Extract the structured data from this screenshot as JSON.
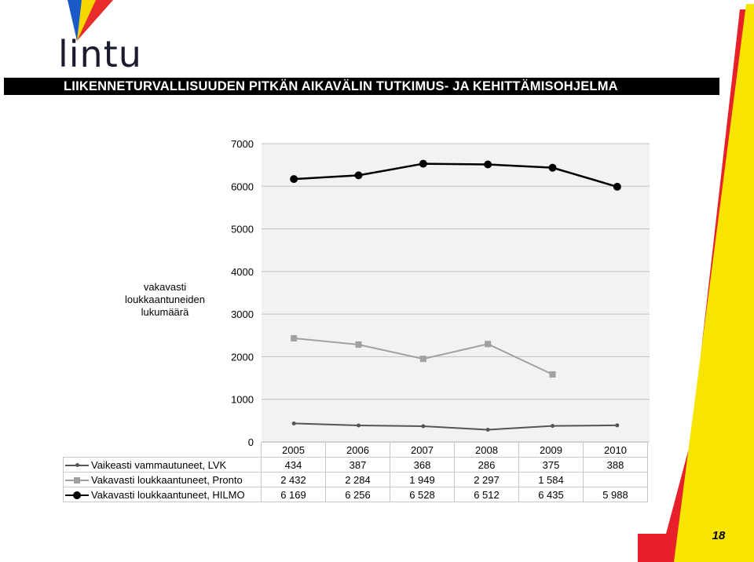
{
  "header": {
    "logo_text": "lintu",
    "banner": "LIIKENNETURVALLISUUDEN PITKÄN AIKAVÄLIN TUTKIMUS- JA KEHITTÄMISOHJELMA"
  },
  "page_number": "18",
  "colors": {
    "stripe_red": "#e8202a",
    "stripe_yellow": "#f7e500",
    "logo_blue": "#1a5ac8",
    "logo_yellow": "#f5d800",
    "logo_red": "#e82b2b"
  },
  "chart_data": {
    "type": "line",
    "ylabel": "vakavasti\nloukkaantuneiden\nlukumäärä",
    "xlabel": "",
    "categories": [
      "2005",
      "2006",
      "2007",
      "2008",
      "2009",
      "2010"
    ],
    "ylim": [
      0,
      7000
    ],
    "yticks": [
      "0",
      "1000",
      "2000",
      "3000",
      "4000",
      "5000",
      "6000",
      "7000"
    ],
    "grid": true,
    "legend": "data-table-below",
    "series": [
      {
        "name": "Vaikeasti vammautuneet, LVK",
        "values": [
          434,
          387,
          368,
          286,
          375,
          388
        ],
        "labels": [
          "434",
          "387",
          "368",
          "286",
          "375",
          "388"
        ],
        "color": "#555555",
        "marker": "dot"
      },
      {
        "name": "Vakavasti loukkaantuneet, Pronto",
        "values": [
          2432,
          2284,
          1949,
          2297,
          1584,
          null
        ],
        "labels": [
          "2 432",
          "2 284",
          "1 949",
          "2 297",
          "1 584",
          ""
        ],
        "color": "#a0a0a0",
        "marker": "square"
      },
      {
        "name": "Vakavasti loukkaantuneet, HILMO",
        "values": [
          6169,
          6256,
          6528,
          6512,
          6435,
          5988
        ],
        "labels": [
          "6 169",
          "6 256",
          "6 528",
          "6 512",
          "6 435",
          "5 988"
        ],
        "color": "#000000",
        "marker": "circle"
      }
    ]
  }
}
